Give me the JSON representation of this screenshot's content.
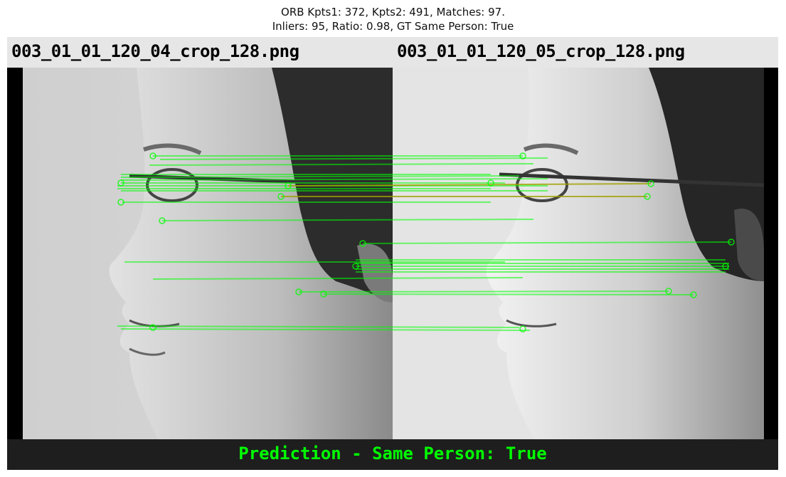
{
  "title": {
    "line1": "ORB Kpts1: 372, Kpts2: 491, Matches: 97.",
    "line2": "Inliers: 95, Ratio: 0.98, GT Same Person: True"
  },
  "images": {
    "left_filename": "003_01_01_120_04_crop_128.png",
    "right_filename": "003_01_01_120_05_crop_128.png"
  },
  "footer": {
    "prediction": "Prediction - Same Person: True"
  },
  "colors": {
    "match_line": "#00ff00",
    "outlier_line": "#b0a000",
    "header_bg": "#e6e6e6",
    "footer_bg": "#1e1e1e",
    "prediction_text": "#00ff00"
  }
}
